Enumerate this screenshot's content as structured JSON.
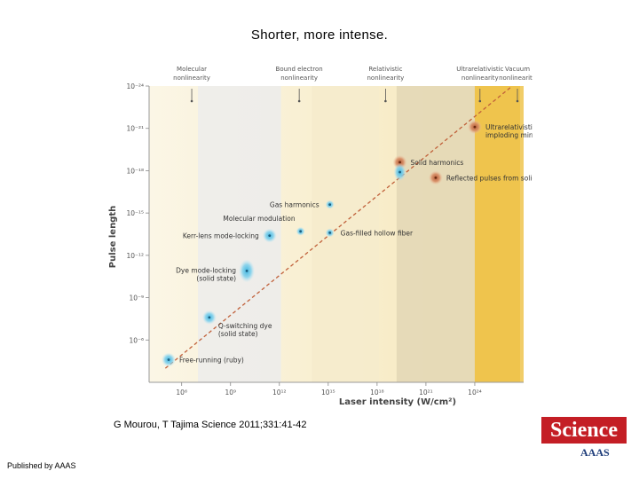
{
  "slide": {
    "title": "Shorter, more intense.",
    "citation": "G Mourou, T Tajima Science 2011;331:41-42",
    "publisher": "Published by AAAS",
    "logo_text": "Science",
    "logo_sub": "AAAS"
  },
  "chart_data": {
    "type": "scatter",
    "xlabel": "Laser intensity (W/cm²)",
    "ylabel": "Pulse length",
    "x_scale": "log",
    "y_scale": "log",
    "xlim_exp": [
      4,
      27
    ],
    "ylim_exp": [
      -24,
      -3
    ],
    "y_inverted": true,
    "x_ticks": [
      {
        "exp": 6,
        "label": "10⁶"
      },
      {
        "exp": 9,
        "label": "10⁹"
      },
      {
        "exp": 12,
        "label": "10¹²"
      },
      {
        "exp": 15,
        "label": "10¹⁵"
      },
      {
        "exp": 18,
        "label": "10¹⁸"
      },
      {
        "exp": 21,
        "label": "10²¹"
      },
      {
        "exp": 24,
        "label": "10²⁴"
      }
    ],
    "y_ticks": [
      {
        "exp": -24,
        "label": "10⁻²⁴"
      },
      {
        "exp": -21,
        "label": "10⁻²¹"
      },
      {
        "exp": -18,
        "label": "10⁻¹⁸"
      },
      {
        "exp": -15,
        "label": "10⁻¹⁵"
      },
      {
        "exp": -12,
        "label": "10⁻¹²"
      },
      {
        "exp": -9,
        "label": "10⁻⁹"
      },
      {
        "exp": -6,
        "label": "10⁻⁶"
      }
    ],
    "regimes": [
      {
        "label": [
          "Molecular",
          "nonlinearity"
        ],
        "x_exp": 7.6,
        "from_exp": 7.0,
        "to_exp": 12.1,
        "color": "#ececec"
      },
      {
        "label": [
          "Bound electron",
          "nonlinearity"
        ],
        "x_exp": 14.2,
        "from_exp": 14.0,
        "to_exp": 18.1,
        "color": "#f6ebcd"
      },
      {
        "label": [
          "Relativistic",
          "nonlinearity"
        ],
        "x_exp": 19.5,
        "from_exp": 19.2,
        "to_exp": 24.0,
        "color": "#e3d7b5"
      },
      {
        "label": [
          "Ultrarelativistic",
          "nonlinearity"
        ],
        "x_exp": 25.3,
        "from_exp": 24.0,
        "to_exp": 26.8,
        "color": "#edbd3a"
      },
      {
        "label": [
          "Vacuum",
          "nonlinearity"
        ],
        "x_exp": 27.6,
        "from_exp": 26.8,
        "to_exp": 28.2,
        "color": "#f0c859"
      }
    ],
    "trend_line": {
      "from": {
        "x_exp": 5,
        "y_exp": -4
      },
      "to": {
        "x_exp": 26.3,
        "y_exp": -24
      }
    },
    "points": [
      {
        "label": [
          "Free-running (ruby)"
        ],
        "x_exp": 5.2,
        "y_exp": -4.6,
        "kind": "blue",
        "label_side": "right"
      },
      {
        "label": [
          "Q-switching dye",
          "(solid state)"
        ],
        "x_exp": 7.7,
        "y_exp": -7.6,
        "kind": "blue",
        "label_side": "below-right"
      },
      {
        "label": [
          "Dye mode-locking",
          "(solid state)"
        ],
        "x_exp": 10.0,
        "y_exp": -10.9,
        "kind": "blue-large",
        "label_side": "left"
      },
      {
        "label": [
          "Kerr-lens mode-locking"
        ],
        "x_exp": 11.4,
        "y_exp": -13.4,
        "kind": "blue",
        "label_side": "left"
      },
      {
        "label": [
          "Molecular modulation"
        ],
        "x_exp": 13.3,
        "y_exp": -13.7,
        "kind": "blue-small",
        "label_side": "above-left"
      },
      {
        "label": [
          "Gas harmonics"
        ],
        "x_exp": 15.1,
        "y_exp": -15.6,
        "kind": "blue-small",
        "label_side": "left"
      },
      {
        "label": [
          "Gas-filled hollow fiber"
        ],
        "x_exp": 15.1,
        "y_exp": -13.6,
        "kind": "blue-small",
        "label_side": "right"
      },
      {
        "label": [
          "Solid harmonics"
        ],
        "x_exp": 19.4,
        "y_exp": -18.6,
        "kind": "orange",
        "label_side": "right"
      },
      {
        "label": [],
        "x_exp": 19.4,
        "y_exp": -17.9,
        "kind": "blue",
        "label_side": "none"
      },
      {
        "label": [
          "Reflected pulses from solid"
        ],
        "x_exp": 21.6,
        "y_exp": -17.5,
        "kind": "orange",
        "label_side": "right"
      },
      {
        "label": [
          "Ultrarelativistic",
          "imploding mirror"
        ],
        "x_exp": 24.0,
        "y_exp": -21.1,
        "kind": "orange",
        "label_side": "right"
      }
    ]
  }
}
